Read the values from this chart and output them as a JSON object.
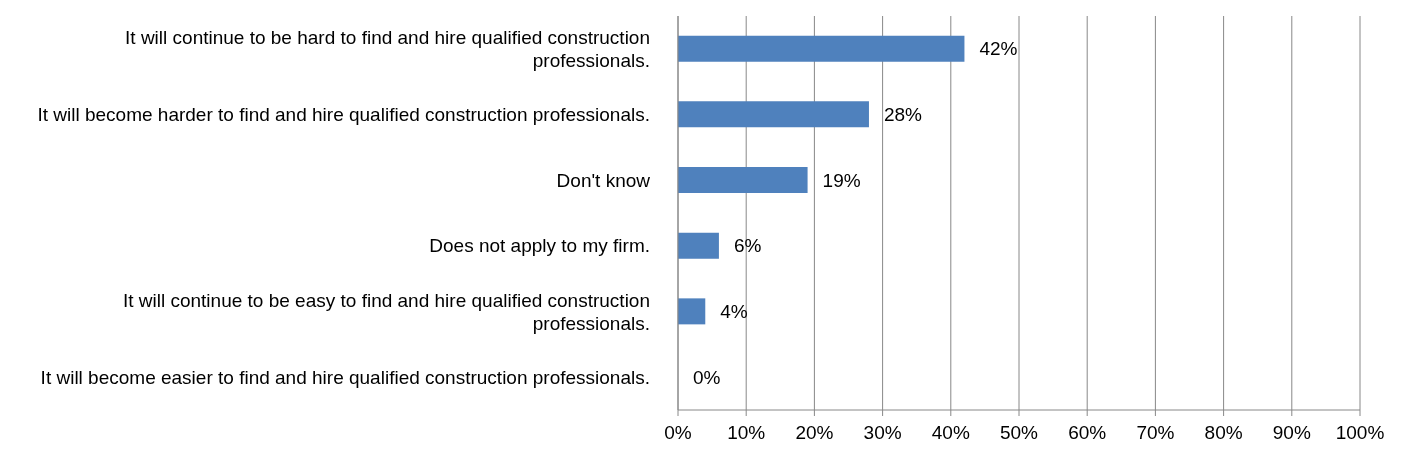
{
  "chart_data": {
    "type": "bar",
    "orientation": "horizontal",
    "categories": [
      "It will continue to be hard to find and hire qualified construction professionals.",
      "It will become harder to find and hire qualified construction professionals.",
      "Don't know",
      "Does not apply to my firm.",
      "It will continue to be easy to find and hire qualified construction professionals.",
      "It will become easier to find and hire qualified construction professionals."
    ],
    "values": [
      42,
      28,
      19,
      6,
      4,
      0
    ],
    "value_labels": [
      "42%",
      "28%",
      "19%",
      "6%",
      "4%",
      "0%"
    ],
    "color": "#4f81bd",
    "xlim": [
      0,
      100
    ],
    "xticks": [
      {
        "value": 0,
        "label": "0%"
      },
      {
        "value": 10,
        "label": "10%"
      },
      {
        "value": 20,
        "label": "20%"
      },
      {
        "value": 30,
        "label": "30%"
      },
      {
        "value": 40,
        "label": "40%"
      },
      {
        "value": 50,
        "label": "50%"
      },
      {
        "value": 60,
        "label": "60%"
      },
      {
        "value": 70,
        "label": "70%"
      },
      {
        "value": 80,
        "label": "80%"
      },
      {
        "value": 90,
        "label": "90%"
      },
      {
        "value": 100,
        "label": "100%"
      }
    ],
    "grid": "x"
  }
}
